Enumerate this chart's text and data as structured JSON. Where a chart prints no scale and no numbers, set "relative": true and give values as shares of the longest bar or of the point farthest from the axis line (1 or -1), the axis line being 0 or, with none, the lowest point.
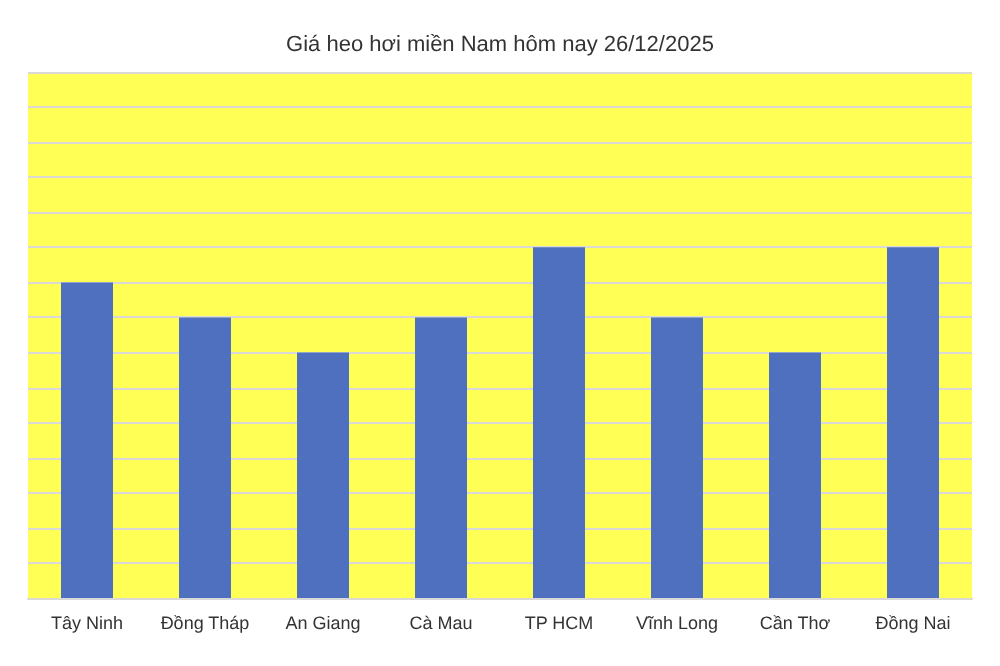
{
  "chart_data": {
    "type": "bar",
    "title": "Giá heo hơi miền Nam hôm nay 26/12/2025",
    "relative": true,
    "categories": [
      "Tây Ninh",
      "Đồng Tháp",
      "An Giang",
      "Cà Mau",
      "TP HCM",
      "Vĩnh Long",
      "Cần Thơ",
      "Đồng Nai"
    ],
    "values": [
      0.9,
      0.8,
      0.7,
      0.8,
      1,
      0.8,
      0.7,
      1
    ],
    "color": "#4e70be",
    "grid": "y"
  }
}
